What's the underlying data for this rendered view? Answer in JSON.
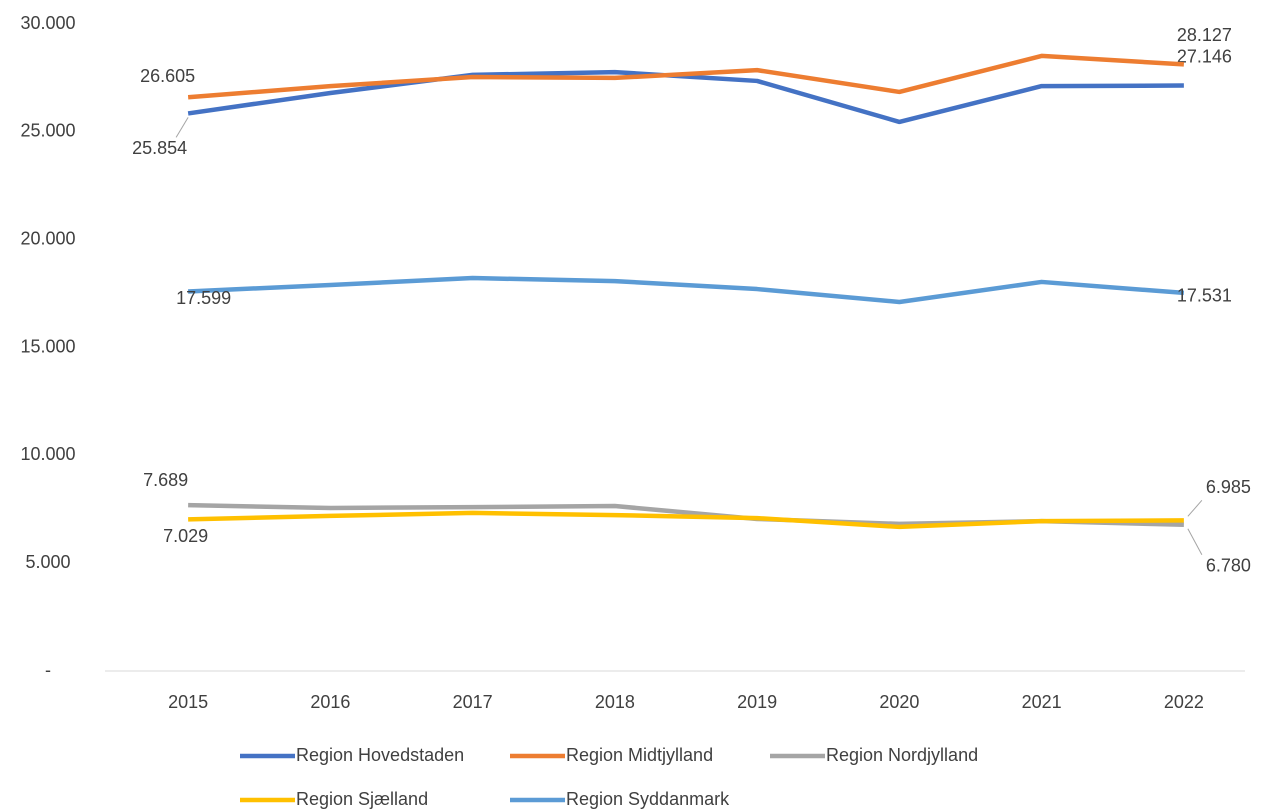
{
  "chart_data": {
    "type": "line",
    "categories": [
      "2015",
      "2016",
      "2017",
      "2018",
      "2019",
      "2020",
      "2021",
      "2022"
    ],
    "series": [
      {
        "name": "Region Hovedstaden",
        "color": "#4472c4",
        "values": [
          25854,
          26800,
          27640,
          27770,
          27360,
          25460,
          27120,
          27146
        ],
        "value_labels": [
          "25.854",
          null,
          null,
          null,
          null,
          null,
          null,
          "27.146"
        ]
      },
      {
        "name": "Region Midtjylland",
        "color": "#ed7d31",
        "values": [
          26605,
          27120,
          27540,
          27500,
          27860,
          26850,
          28520,
          28127
        ],
        "value_labels": [
          "26.605",
          null,
          null,
          null,
          null,
          null,
          null,
          "28.127"
        ]
      },
      {
        "name": "Region Nordjylland",
        "color": "#a5a5a5",
        "values": [
          7689,
          7560,
          7600,
          7650,
          7050,
          6820,
          6950,
          6780
        ],
        "value_labels": [
          "7.689",
          null,
          null,
          null,
          null,
          null,
          null,
          "6.780"
        ]
      },
      {
        "name": "Region Sjælland",
        "color": "#ffc000",
        "values": [
          7029,
          7190,
          7330,
          7230,
          7090,
          6680,
          6950,
          6985
        ],
        "value_labels": [
          "7.029",
          null,
          null,
          null,
          null,
          null,
          null,
          "6.985"
        ]
      },
      {
        "name": "Region Syddanmark",
        "color": "#5b9bd5",
        "values": [
          17599,
          17900,
          18220,
          18080,
          17710,
          17110,
          18040,
          17531
        ],
        "value_labels": [
          "17.599",
          null,
          null,
          null,
          null,
          null,
          null,
          "17.531"
        ]
      }
    ],
    "ylim": [
      0,
      30000
    ],
    "yticks": [
      {
        "value": 0,
        "label": "-"
      },
      {
        "value": 5000,
        "label": "5.000"
      },
      {
        "value": 10000,
        "label": "10.000"
      },
      {
        "value": 15000,
        "label": "15.000"
      },
      {
        "value": 20000,
        "label": "20.000"
      },
      {
        "value": 25000,
        "label": "25.000"
      },
      {
        "value": 30000,
        "label": "30.000"
      }
    ],
    "grid": false,
    "legend": "bottom"
  }
}
